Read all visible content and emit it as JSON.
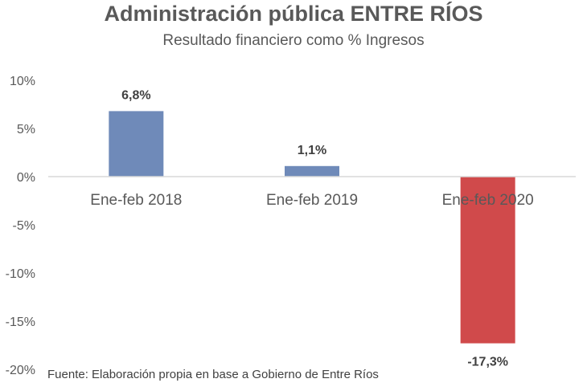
{
  "chart_data": {
    "type": "bar",
    "title": "Administración pública ENTRE RÍOS",
    "subtitle": "Resultado financiero como % Ingresos",
    "categories": [
      "Ene-feb 2018",
      "Ene-feb 2019",
      "Ene-feb 2020"
    ],
    "values": [
      6.8,
      1.1,
      -17.3
    ],
    "value_labels": [
      "6,8%",
      "1,1%",
      "-17,3%"
    ],
    "bar_colors": [
      "#6f8ab9",
      "#6f8ab9",
      "#d04a4b"
    ],
    "yticks": [
      {
        "value": 10,
        "label": "10%"
      },
      {
        "value": 5,
        "label": "5%"
      },
      {
        "value": 0,
        "label": "0%"
      },
      {
        "value": -5,
        "label": "-5%"
      },
      {
        "value": -10,
        "label": "-10%"
      },
      {
        "value": -15,
        "label": "-15%"
      },
      {
        "value": -20,
        "label": "-20%"
      }
    ],
    "ylim": [
      -20,
      10
    ],
    "grid": false,
    "legend": "none",
    "xlabel": "",
    "ylabel": "",
    "source": "Fuente: Elaboración propia en base a Gobierno de Entre Ríos"
  }
}
